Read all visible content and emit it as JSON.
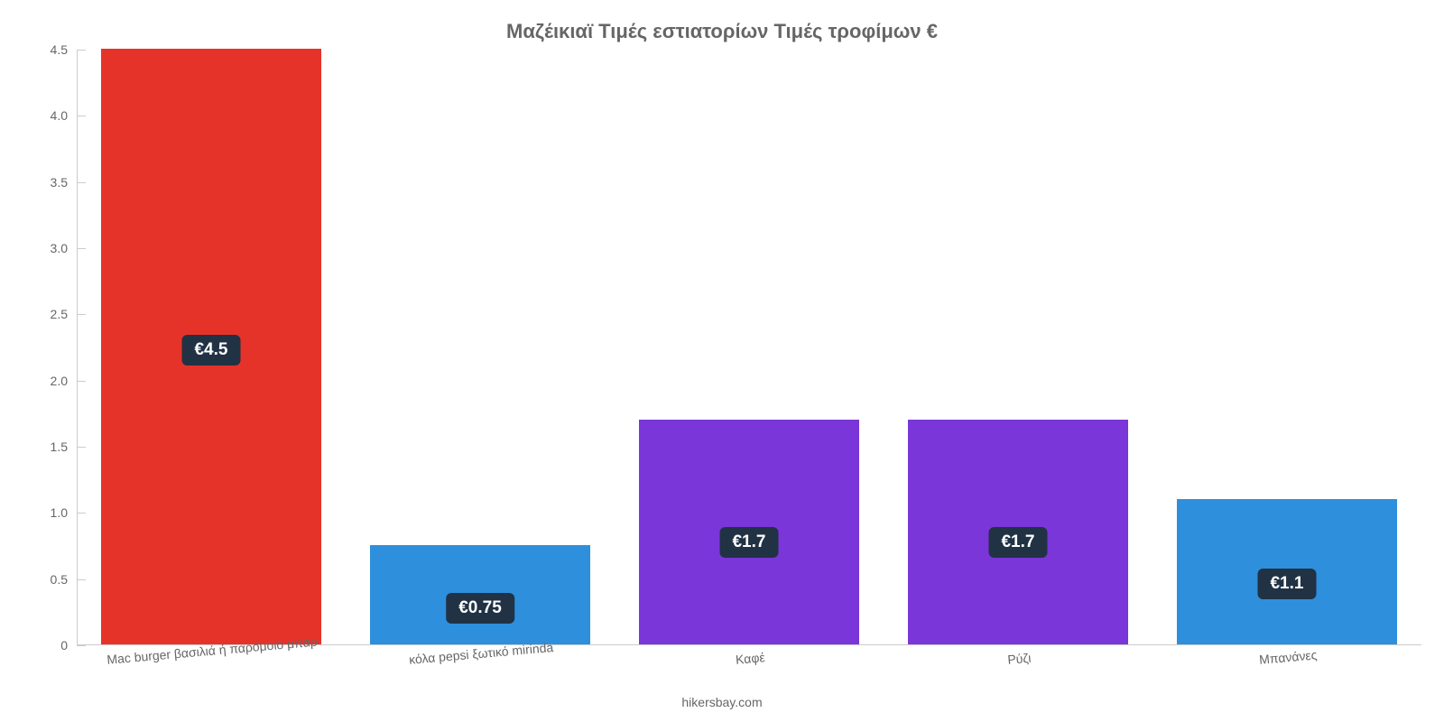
{
  "chart": {
    "type": "bar",
    "title": "Μαζέικιαϊ Τιμές εστιατορίων Τιμές τροφίμων €",
    "title_fontsize": 22,
    "title_color": "#666666",
    "background_color": "#ffffff",
    "axis_color": "#cccccc",
    "tick_label_color": "#666666",
    "tick_label_fontsize": 14,
    "y": {
      "min": 0,
      "max": 4.5,
      "ticks": [
        0,
        0.5,
        1.0,
        1.5,
        2.0,
        2.5,
        3.0,
        3.5,
        4.0,
        4.5
      ],
      "tick_labels": [
        "0",
        "0.5",
        "1.0",
        "1.5",
        "2.0",
        "2.5",
        "3.0",
        "3.5",
        "4.0",
        "4.5"
      ]
    },
    "x_label_rotation_deg": -5,
    "bar_width_ratio": 0.82,
    "value_badge": {
      "bg": "#213244",
      "text_color": "#ffffff",
      "fontsize": 19,
      "border_radius": 6
    },
    "categories": [
      {
        "label": "Mac burger βασιλιά ή παρόμοιο μπαρ",
        "value": 4.5,
        "display": "€4.5",
        "color": "#e6332a"
      },
      {
        "label": "κόλα pepsi ξωτικό mirinda",
        "value": 0.75,
        "display": "€0.75",
        "color": "#2e8fdc"
      },
      {
        "label": "Καφέ",
        "value": 1.7,
        "display": "€1.7",
        "color": "#7a36d9"
      },
      {
        "label": "Ρύζι",
        "value": 1.7,
        "display": "€1.7",
        "color": "#7a36d9"
      },
      {
        "label": "Μπανάνες",
        "value": 1.1,
        "display": "€1.1",
        "color": "#2e8fdc"
      }
    ],
    "credit": "hikersbay.com",
    "credit_fontsize": 14,
    "credit_color": "#666666"
  }
}
